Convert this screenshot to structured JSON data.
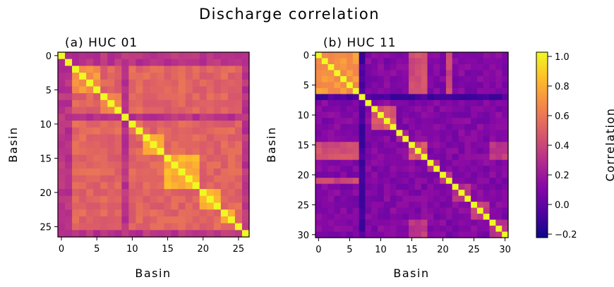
{
  "figure": {
    "title": "Discharge correlation"
  },
  "colors": {
    "cmap": [
      "#0d0887",
      "#5302a3",
      "#8b0aa5",
      "#b83289",
      "#db5c68",
      "#f48849",
      "#febd2a",
      "#f0f921"
    ]
  },
  "chart_data": [
    {
      "type": "heatmap",
      "title": "(a) HUC 01",
      "xlabel": "Basin",
      "ylabel": "Basin",
      "n": 27,
      "xticks": [
        0,
        5,
        10,
        15,
        20,
        25
      ],
      "yticks": [
        0,
        5,
        10,
        15,
        20,
        25
      ],
      "value_range": [
        -0.2,
        1.0
      ],
      "groups": [
        [
          0,
          5,
          0.7
        ],
        [
          6,
          9,
          0.62
        ],
        [
          10,
          11,
          0.58
        ],
        [
          12,
          14,
          0.82
        ],
        [
          15,
          19,
          0.78
        ],
        [
          20,
          22,
          0.8
        ],
        [
          23,
          24,
          0.75
        ],
        [
          25,
          26,
          0.72
        ]
      ],
      "background": 0.52,
      "weak_basins": [
        0,
        1,
        9,
        26
      ],
      "weak_value": 0.32
    },
    {
      "type": "heatmap",
      "title": "(b) HUC 11",
      "xlabel": "Basin",
      "ylabel": "Basin",
      "n": 31,
      "xticks": [
        0,
        5,
        10,
        15,
        20,
        25,
        30
      ],
      "yticks": [
        0,
        5,
        10,
        15,
        20,
        25,
        30
      ],
      "value_range": [
        -0.2,
        1.0
      ],
      "groups": [
        [
          0,
          6,
          0.7
        ],
        [
          7,
          8,
          0.25
        ],
        [
          9,
          12,
          0.48
        ],
        [
          13,
          14,
          0.3
        ],
        [
          15,
          17,
          0.45
        ],
        [
          18,
          19,
          0.28
        ],
        [
          20,
          21,
          0.32
        ],
        [
          22,
          24,
          0.3
        ],
        [
          25,
          27,
          0.38
        ],
        [
          28,
          30,
          0.33
        ]
      ],
      "background": 0.12,
      "cross_links": [
        [
          0,
          6,
          15,
          17,
          0.42
        ],
        [
          0,
          6,
          21,
          21,
          0.4
        ],
        [
          15,
          17,
          28,
          30,
          0.34
        ]
      ],
      "weak_basins": [
        7
      ],
      "weak_value": -0.05
    }
  ],
  "colorbar": {
    "label": "Correlation",
    "ticks": [
      1.0,
      0.8,
      0.6,
      0.4,
      0.2,
      0.0,
      -0.2
    ],
    "tick_labels": [
      "1.0",
      "0.8",
      "0.6",
      "0.4",
      "0.2",
      "0.0",
      "−0.2"
    ],
    "range": [
      -0.2,
      1.0
    ]
  }
}
